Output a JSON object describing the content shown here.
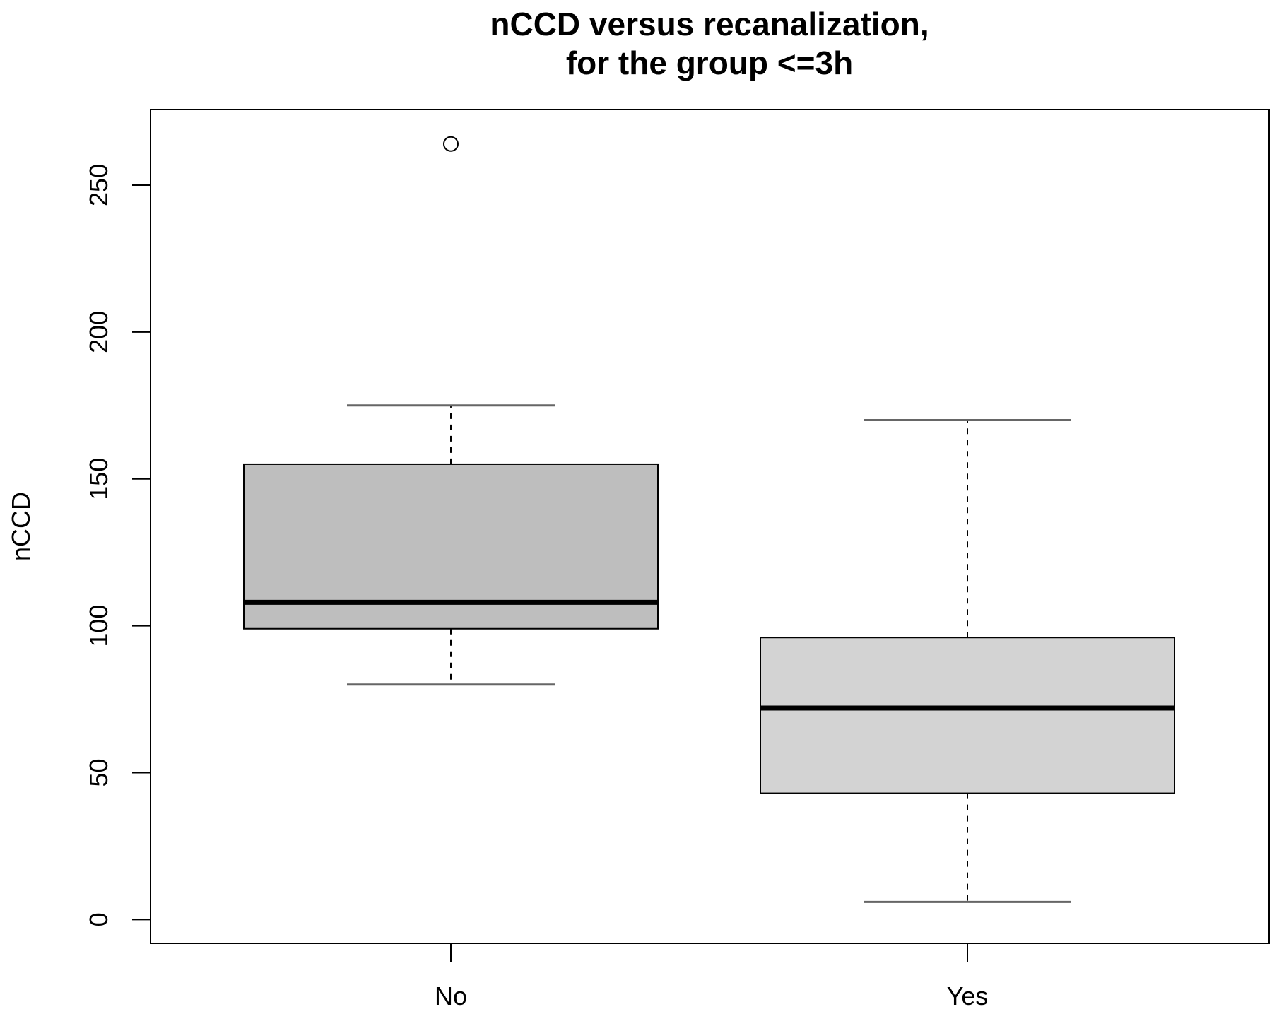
{
  "chart_data": {
    "type": "boxplot",
    "title": "nCCD versus recanalization,",
    "subtitle": "for the group <=3h",
    "xlabel": "",
    "ylabel": "nCCD",
    "ylim": [
      -4,
      275
    ],
    "yticks": [
      0,
      50,
      100,
      150,
      200,
      250
    ],
    "categories": [
      "No",
      "Yes"
    ],
    "boxes": [
      {
        "category": "No",
        "whisker_low": 80,
        "q1": 99,
        "median": 108,
        "q3": 155,
        "whisker_high": 175,
        "outliers": [
          264
        ]
      },
      {
        "category": "Yes",
        "whisker_low": 6,
        "q1": 43,
        "median": 72,
        "q3": 96,
        "whisker_high": 170,
        "outliers": []
      }
    ],
    "box_colors": [
      "#bebebe",
      "#d3d3d3"
    ],
    "grid": false,
    "legend": "none"
  }
}
